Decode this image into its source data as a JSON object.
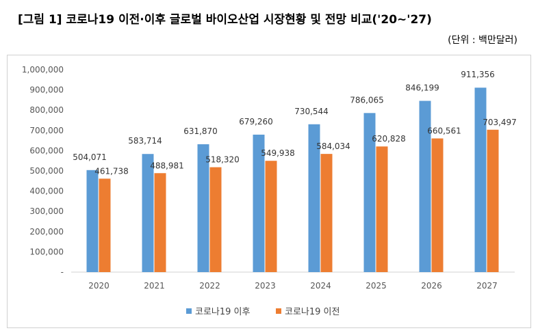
{
  "figure": {
    "title": "[그림 1] 코로나19 이전·이후 글로벌 바이오산업 시장현황 및 전망 비교('20~'27)",
    "unit": "(단위 : 백만달러)"
  },
  "chart_data": {
    "type": "bar",
    "categories": [
      "2020",
      "2021",
      "2022",
      "2023",
      "2024",
      "2025",
      "2026",
      "2027"
    ],
    "series": [
      {
        "name": "코로나19 이후",
        "color": "#5b9bd5",
        "values": [
          504071,
          583714,
          631870,
          679260,
          730544,
          786065,
          846199,
          911356
        ],
        "labels": [
          "504,071",
          "583,714",
          "631,870",
          "679,260",
          "730,544",
          "786,065",
          "846,199",
          "911,356"
        ]
      },
      {
        "name": "코로나19 이전",
        "color": "#ed7d31",
        "values": [
          461738,
          488981,
          518320,
          549938,
          584034,
          620828,
          660561,
          703497
        ],
        "labels": [
          "461,738",
          "488,981",
          "518,320",
          "549,938",
          "584,034",
          "620,828",
          "660,561",
          "703,497"
        ]
      }
    ],
    "ylim": [
      0,
      1000000
    ],
    "yticks": [
      "-",
      "100,000",
      "200,000",
      "300,000",
      "400,000",
      "500,000",
      "600,000",
      "700,000",
      "800,000",
      "900,000",
      "1,000,000"
    ],
    "grid": false,
    "legend": "bottom"
  }
}
